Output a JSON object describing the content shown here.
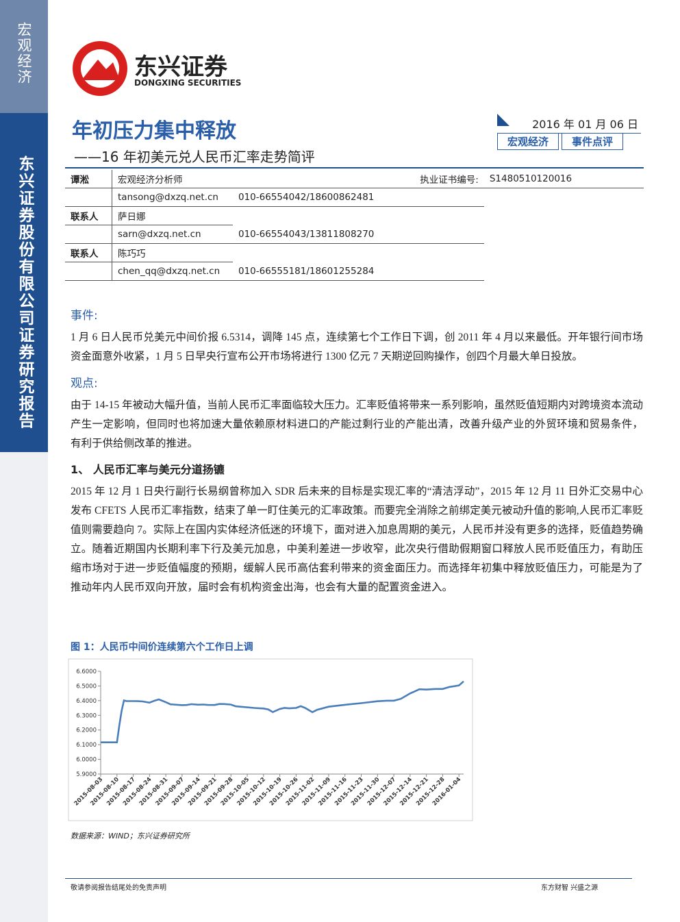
{
  "sidebar": {
    "section": "宏观经济",
    "company": "东兴证券股份有限公司证券研究报告"
  },
  "logo": {
    "name": "东兴证券",
    "english": "DONGXING SECURITIES"
  },
  "header": {
    "title": "年初压力集中释放",
    "subtitle": "——16 年初美元兑人民币汇率走势简评",
    "date": "2016 年 01 月 06 日",
    "tags": [
      "宏观经济",
      "事件点评"
    ]
  },
  "analysts": {
    "rows": [
      [
        "谭淞",
        "宏观经济分析师",
        "执业证书编号:",
        "S1480510120016"
      ],
      [
        "",
        "tansong@dxzq.net.cn",
        "010-66554042/18600862481"
      ],
      [
        "联系人",
        "萨日娜"
      ],
      [
        "",
        "sarn@dxzq.net.cn",
        "010-66554043/13811808270"
      ],
      [
        "联系人",
        "陈巧巧"
      ],
      [
        "",
        "chen_qq@dxzq.net.cn",
        "010-66555181/18601255284"
      ]
    ]
  },
  "sections": [
    {
      "heading": "事件:",
      "paragraphs": [
        "1 月 6 日人民币兑美元中间价报 6.5314，调降 145 点，连续第七个工作日下调，创 2011 年 4 月以来最低。开年银行间市场资金面意外收紧，1 月 5 日早央行宣布公开市场将进行 1300 亿元 7 天期逆回购操作，创四个月最大单日投放。"
      ]
    },
    {
      "heading": "观点:",
      "paragraphs": [
        "由于 14-15 年被动大幅升值，当前人民币汇率面临较大压力。汇率贬值将带来一系列影响，虽然贬值短期内对跨境资本流动产生一定影响，但同时也将加速大量依赖原材料进口的产能过剩行业的产能出清，改善升级产业的外贸环境和贸易条件，有利于供给侧改革的推进。"
      ]
    },
    {
      "heading": "1、 人民币汇率与美元分道扬镳",
      "paragraphs": [
        "2015 年 12 月 1 日央行副行长易纲曾称加入 SDR 后未来的目标是实现汇率的“清洁浮动”，2015 年 12 月 11 日外汇交易中心发布 CFETS 人民币汇率指数，结束了单一盯住美元的汇率政策。而要完全消除之前绑定美元被动升值的影响,人民币汇率贬值则需要趋向 7。实际上在国内实体经济低迷的环境下，面对进入加息周期的美元，人民币并没有更多的选择，贬值趋势确立。随着近期国内长期利率下行及美元加息，中美利差进一步收窄，此次央行借助假期窗口释放人民币贬值压力，有助压缩市场对于进一步贬值幅度的预期，缓解人民币高估套利带来的资金面压力。而选择年初集中释放贬值压力，可能是为了推动年内人民币双向开放，届时会有机构资金出海，也会有大量的配置资金进入。"
      ]
    }
  ],
  "figure": {
    "caption": "图 1：人民币中间价连续第六个工作日上调",
    "source": "数据来源：WIND；东兴证券研究所",
    "chart": {
      "type": "line",
      "color": "#4a7ebb",
      "x": [
        "2015-08-03",
        "2015-08-07",
        "2015-08-10",
        "2015-08-11",
        "2015-08-12",
        "2015-08-13",
        "2015-08-14",
        "2015-08-17",
        "2015-08-19",
        "2015-08-21",
        "2015-08-24",
        "2015-08-26",
        "2015-08-28",
        "2015-08-31",
        "2015-09-02",
        "2015-09-07",
        "2015-09-09",
        "2015-09-11",
        "2015-09-14",
        "2015-09-16",
        "2015-09-18",
        "2015-09-21",
        "2015-09-23",
        "2015-09-25",
        "2015-09-28",
        "2015-09-30",
        "2015-10-08",
        "2015-10-12",
        "2015-10-14",
        "2015-10-16",
        "2015-10-19",
        "2015-10-21",
        "2015-10-23",
        "2015-10-26",
        "2015-10-28",
        "2015-10-30",
        "2015-11-02",
        "2015-11-04",
        "2015-11-09",
        "2015-11-16",
        "2015-11-23",
        "2015-11-30",
        "2015-12-04",
        "2015-12-07",
        "2015-12-10",
        "2015-12-14",
        "2015-12-16",
        "2015-12-18",
        "2015-12-21",
        "2015-12-25",
        "2015-12-28",
        "2015-12-31",
        "2016-01-04",
        "2016-01-06"
      ],
      "values": [
        6.1162,
        6.1162,
        6.1162,
        6.2298,
        6.3306,
        6.401,
        6.3975,
        6.3969,
        6.3966,
        6.3945,
        6.3862,
        6.3987,
        6.4085,
        6.3893,
        6.3752,
        6.3693,
        6.3703,
        6.3758,
        6.3724,
        6.3737,
        6.371,
        6.3702,
        6.3773,
        6.3768,
        6.3732,
        6.3613,
        6.3505,
        6.3466,
        6.3403,
        6.322,
        6.3435,
        6.3505,
        6.3474,
        6.3505,
        6.3626,
        6.3495,
        6.3214,
        6.3378,
        6.3588,
        6.372,
        6.3831,
        6.3962,
        6.4,
        6.3999,
        6.4122,
        6.4495,
        6.4632,
        6.4775,
        6.4753,
        6.4795,
        6.4795,
        6.4936,
        6.5032,
        6.5314
      ],
      "xlim": [
        "2015-08-03",
        "2016-01-06"
      ],
      "xticks": [
        "2015-08-03",
        "2015-08-10",
        "2015-08-17",
        "2015-08-24",
        "2015-08-31",
        "2015-09-07",
        "2015-09-14",
        "2015-09-21",
        "2015-09-28",
        "2015-10-05",
        "2015-10-12",
        "2015-10-19",
        "2015-10-26",
        "2015-11-02",
        "2015-11-09",
        "2015-11-16",
        "2015-11-23",
        "2015-11-30",
        "2015-12-07",
        "2015-12-14",
        "2015-12-21",
        "2015-12-28",
        "2016-01-04"
      ],
      "ylim": [
        5.9,
        6.6
      ],
      "yticks": [
        {
          "value": 5.9,
          "label": "5.9000"
        },
        {
          "value": 6,
          "label": "6.0000"
        },
        {
          "value": 6.1,
          "label": "6.1000"
        },
        {
          "value": 6.2,
          "label": "6.2000"
        },
        {
          "value": 6.3,
          "label": "6.3000"
        },
        {
          "value": 6.4,
          "label": "6.4000"
        },
        {
          "value": 6.5,
          "label": "6.5000"
        },
        {
          "value": 6.6,
          "label": "6.6000"
        }
      ]
    }
  },
  "footer": {
    "left": "敬请参阅报告结尾处的免责声明",
    "right": "东方财智  兴盛之源"
  }
}
